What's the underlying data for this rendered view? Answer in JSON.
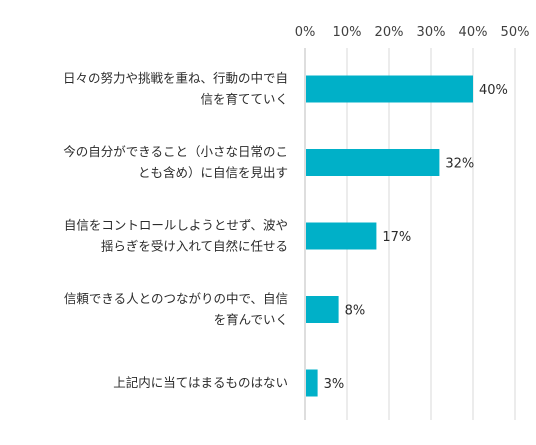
{
  "chart_data": {
    "type": "bar",
    "orientation": "horizontal",
    "categories": [
      [
        "日々の努力や挑戦を重ね、行動の中で自",
        "信を育てていく"
      ],
      [
        "今の自分ができること（小さな日常のこ",
        "とも含め）に自信を見出す"
      ],
      [
        "自信をコントロールしようとせず、波や",
        "揺らぎを受け入れて自然に任せる"
      ],
      [
        "信頼できる人とのつながりの中で、自信",
        "を育んでいく"
      ],
      [
        "上記内に当てはまるものはない"
      ]
    ],
    "values": [
      40,
      32,
      17,
      8,
      3
    ],
    "value_labels": [
      "40%",
      "32%",
      "17%",
      "8%",
      "3%"
    ],
    "xlim": [
      0,
      50
    ],
    "ticks": [
      0,
      10,
      20,
      30,
      40,
      50
    ],
    "tick_labels": [
      "0%",
      "10%",
      "20%",
      "30%",
      "40%",
      "50%"
    ],
    "axis_position": "top",
    "grid": true,
    "bar_color": "#00b0c8",
    "title": "",
    "xlabel": "",
    "ylabel": ""
  }
}
